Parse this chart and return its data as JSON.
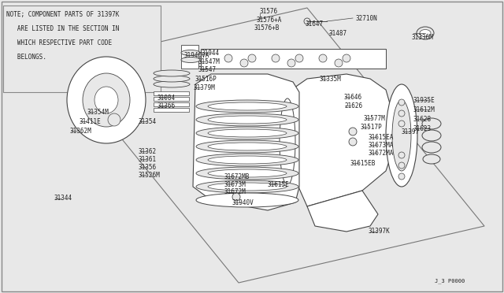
{
  "bg_color": "#e8e8e8",
  "line_color": "#444444",
  "text_color": "#222222",
  "note_lines": [
    "NOTE; COMPONENT PARTS OF 31397K",
    "   ARE LISTED IN THE SECTION IN",
    "   WHICH RESPECTIVE PART CODE",
    "   BELONGS."
  ],
  "diagram_id": "J_3 P0000",
  "font_size": 5.2,
  "label_font_size": 5.5
}
